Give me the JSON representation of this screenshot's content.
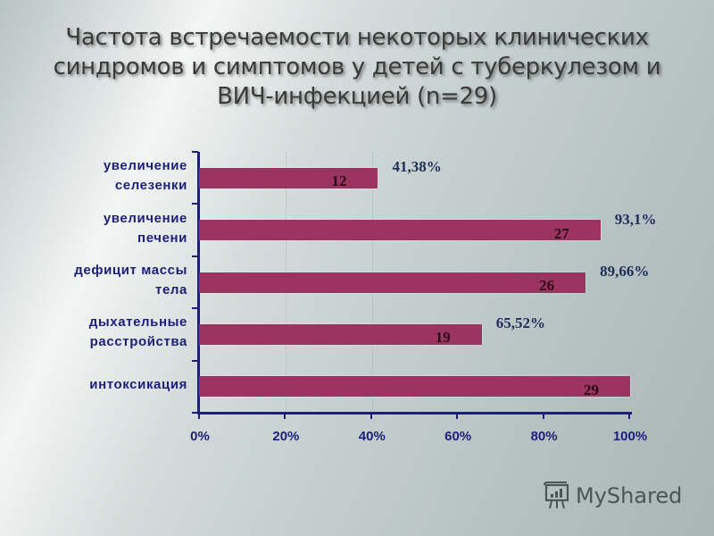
{
  "slide": {
    "title_lines": [
      "Частота встречаемости некоторых клинических",
      "синдромов и симптомов у детей с туберкулезом и",
      "ВИЧ-инфекцией (n=29)"
    ],
    "watermark": "MyShared"
  },
  "chart_data": {
    "type": "bar",
    "orientation": "horizontal",
    "title": "Частота встречаемости некоторых клинических синдромов и симптомов у детей с туберкулезом и ВИЧ-инфекцией (n=29)",
    "xlabel": "",
    "ylabel": "",
    "xlim": [
      0,
      100
    ],
    "x_ticks": [
      "0%",
      "20%",
      "40%",
      "60%",
      "80%",
      "100%"
    ],
    "grid": false,
    "legend": null,
    "bar_color": "#9b3461",
    "axis_color": "#1b1f7a",
    "categories": [
      "увеличение селезенки",
      "увеличение печени",
      "дефицит массы тела",
      "дыхательные расстройства",
      "интоксикация"
    ],
    "category_lines": [
      [
        "увеличение",
        "селезенки"
      ],
      [
        "увеличение",
        "печени"
      ],
      [
        "дефицит массы",
        "тела"
      ],
      [
        "дыхательные",
        "расстройства"
      ],
      [
        "интоксикация"
      ]
    ],
    "counts": [
      12,
      27,
      26,
      19,
      29
    ],
    "values": [
      41.38,
      93.1,
      89.66,
      65.52,
      100
    ],
    "count_labels": [
      "12",
      "27",
      "26",
      "19",
      "29"
    ],
    "percent_labels": [
      "41,38%",
      "93,1%",
      "89,66%",
      "65,52%",
      ""
    ]
  }
}
